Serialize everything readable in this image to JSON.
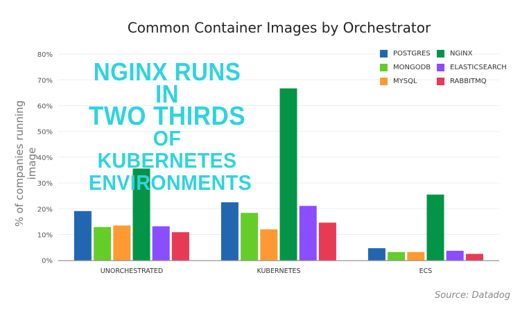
{
  "chart_data": {
    "type": "bar",
    "title": "Common Container Images by Orchestrator",
    "ylabel": "% of companies running image",
    "xlabel": "",
    "ylim": [
      0,
      80
    ],
    "yticks": [
      "0%",
      "10%",
      "20%",
      "30%",
      "40%",
      "50%",
      "60%",
      "70%",
      "80%"
    ],
    "grid": true,
    "legend_position": "top-right",
    "categories": [
      "UNORCHESTRATED",
      "KUBERNETES",
      "ECS"
    ],
    "series": [
      {
        "name": "POSTGRES",
        "color": "#2266b0",
        "values": [
          19.1,
          22.5,
          4.7
        ]
      },
      {
        "name": "MONGODB",
        "color": "#66cc2a",
        "values": [
          12.9,
          18.4,
          3.2
        ]
      },
      {
        "name": "MYSQL",
        "color": "#ff9933",
        "values": [
          13.5,
          12.0,
          3.2
        ]
      },
      {
        "name": "NGINX",
        "color": "#049447",
        "values": [
          35.6,
          66.7,
          25.5
        ]
      },
      {
        "name": "ELASTICSEARCH",
        "color": "#8a4dff",
        "values": [
          13.2,
          21.1,
          3.7
        ]
      },
      {
        "name": "RABBITMQ",
        "color": "#e63a55",
        "values": [
          10.9,
          14.6,
          2.5
        ]
      }
    ],
    "annotation": [
      "NGINX RUNS IN",
      "TWO THIRDS",
      "OF KUBERNETES",
      "ENVIRONMENTS"
    ],
    "source": "Source: Datadog"
  }
}
